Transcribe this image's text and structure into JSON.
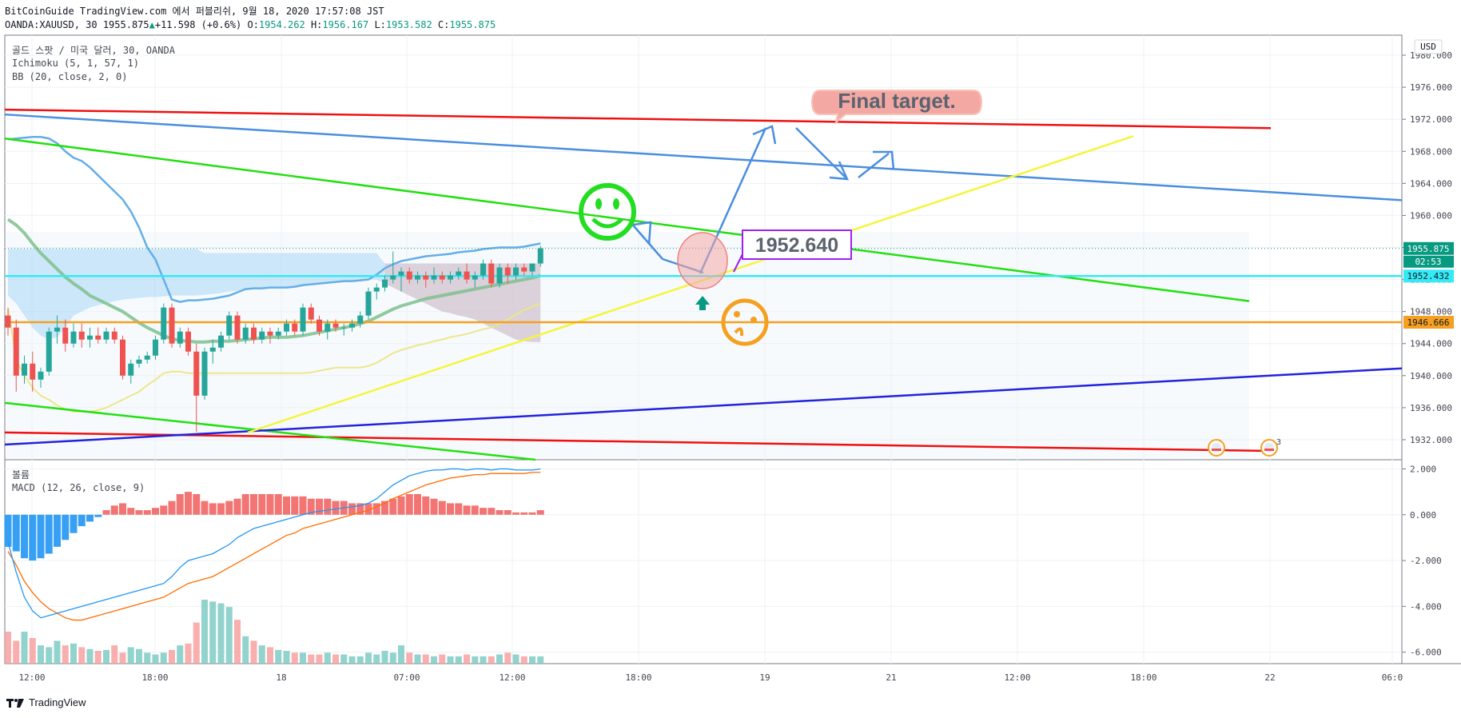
{
  "header": {
    "publish_line": "BitCoinGuide TradingView.com 에서 퍼블리쉬, 9월 18, 2020 17:57:08 JST",
    "symbol": "OANDA:XAUUSD, 30",
    "last": "1955.875",
    "change": "+11.598 (+0.6%)",
    "o_label": "O:",
    "o": "1954.262",
    "h_label": "H:",
    "h": "1956.167",
    "l_label": "L:",
    "l": "1953.582",
    "c_label": "C:",
    "c": "1955.875"
  },
  "legend": {
    "title": "골드 스팟 / 미국 달러, 30, OANDA",
    "ichimoku": "Ichimoku (5, 1, 57, 1)",
    "bb": "BB (20, close, 2, 0)",
    "volume": "볼륨",
    "macd": "MACD (12, 26, close, 9)"
  },
  "currency_label": "USD",
  "annotations": {
    "final_target": "Final target.",
    "price_box": "1952.640"
  },
  "price_tags": {
    "last": "1955.875",
    "countdown": "02:53",
    "cyan_line": "1952.432",
    "orange_line": "1946.666"
  },
  "event_count": "3",
  "brand": "TradingView",
  "colors": {
    "up": "#26a69a",
    "down": "#ef5350",
    "red_line": "#f01010",
    "blue_line": "#4a8ee0",
    "green_line": "#22e010",
    "yellow_line": "#f5f53c",
    "navy_line": "#2222dd",
    "cyan_line": "#33eaf5",
    "orange_line": "#f5a020"
  },
  "chart_data": {
    "type": "candlestick",
    "symbol": "OANDA:XAUUSD",
    "timeframe": "30",
    "price_axis": {
      "ticks": [
        "1980.000",
        "1976.000",
        "1972.000",
        "1968.000",
        "1964.000",
        "1960.000",
        "1956.000",
        "1952.000",
        "1948.000",
        "1944.000",
        "1940.000",
        "1936.000",
        "1932.000"
      ],
      "range": [
        1929.5,
        1982.5
      ]
    },
    "macd_axis": {
      "ticks": [
        "2.000",
        "0.000",
        "-2.000",
        "-4.000",
        "-6.000"
      ],
      "range": [
        -6.5,
        2.4
      ]
    },
    "time_ticks": [
      "12:00",
      "18:00",
      "18",
      "07:00",
      "12:00",
      "18:00",
      "19",
      "21",
      "12:00",
      "18:00",
      "22",
      "06:0"
    ],
    "candles": [
      [
        1947.5,
        1948.4,
        1945.0,
        1946.0
      ],
      [
        1946.0,
        1947.0,
        1938.0,
        1940.0
      ],
      [
        1940.0,
        1942.5,
        1939.0,
        1941.5
      ],
      [
        1941.5,
        1943.0,
        1938.0,
        1939.5
      ],
      [
        1939.5,
        1941.0,
        1938.5,
        1940.5
      ],
      [
        1940.5,
        1946.0,
        1940.0,
        1945.5
      ],
      [
        1945.5,
        1947.5,
        1944.0,
        1946.0
      ],
      [
        1946.0,
        1947.0,
        1943.0,
        1944.0
      ],
      [
        1944.0,
        1946.5,
        1943.5,
        1945.5
      ],
      [
        1945.5,
        1946.5,
        1943.5,
        1944.5
      ],
      [
        1944.5,
        1946.0,
        1943.5,
        1945.0
      ],
      [
        1945.0,
        1946.0,
        1944.0,
        1944.5
      ],
      [
        1944.5,
        1946.0,
        1944.0,
        1945.5
      ],
      [
        1945.5,
        1946.0,
        1944.0,
        1944.5
      ],
      [
        1944.5,
        1945.0,
        1939.5,
        1940.0
      ],
      [
        1940.0,
        1942.0,
        1939.0,
        1941.5
      ],
      [
        1941.5,
        1942.5,
        1941.0,
        1942.0
      ],
      [
        1942.0,
        1943.0,
        1941.5,
        1942.5
      ],
      [
        1942.5,
        1945.0,
        1942.0,
        1944.5
      ],
      [
        1944.5,
        1949.0,
        1944.0,
        1948.5
      ],
      [
        1948.5,
        1949.0,
        1943.5,
        1944.0
      ],
      [
        1944.0,
        1946.0,
        1943.5,
        1945.5
      ],
      [
        1945.5,
        1946.0,
        1942.5,
        1943.0
      ],
      [
        1943.0,
        1944.0,
        1933.0,
        1937.5
      ],
      [
        1937.5,
        1943.5,
        1937.0,
        1943.0
      ],
      [
        1943.0,
        1944.5,
        1941.5,
        1943.5
      ],
      [
        1943.5,
        1945.5,
        1943.0,
        1945.0
      ],
      [
        1945.0,
        1948.0,
        1944.5,
        1947.5
      ],
      [
        1947.5,
        1948.0,
        1944.0,
        1944.5
      ],
      [
        1944.5,
        1946.5,
        1944.0,
        1946.0
      ],
      [
        1946.0,
        1946.5,
        1944.0,
        1944.5
      ],
      [
        1944.5,
        1946.0,
        1944.0,
        1945.5
      ],
      [
        1945.5,
        1946.0,
        1944.0,
        1945.0
      ],
      [
        1945.0,
        1946.0,
        1944.5,
        1945.5
      ],
      [
        1945.5,
        1947.0,
        1945.0,
        1946.5
      ],
      [
        1946.5,
        1947.0,
        1945.0,
        1945.5
      ],
      [
        1945.5,
        1949.0,
        1945.0,
        1948.5
      ],
      [
        1948.5,
        1949.0,
        1946.5,
        1947.0
      ],
      [
        1947.0,
        1947.5,
        1945.0,
        1945.5
      ],
      [
        1945.5,
        1947.0,
        1944.5,
        1946.5
      ],
      [
        1946.5,
        1947.0,
        1945.5,
        1946.0
      ],
      [
        1946.0,
        1946.5,
        1945.0,
        1946.0
      ],
      [
        1946.0,
        1947.0,
        1945.5,
        1946.5
      ],
      [
        1946.5,
        1948.0,
        1946.0,
        1947.5
      ],
      [
        1947.5,
        1951.0,
        1947.0,
        1950.5
      ],
      [
        1950.5,
        1951.5,
        1949.5,
        1951.0
      ],
      [
        1951.0,
        1952.5,
        1950.5,
        1952.0
      ],
      [
        1952.0,
        1955.5,
        1951.5,
        1952.5
      ],
      [
        1952.5,
        1953.5,
        1950.5,
        1953.0
      ],
      [
        1953.0,
        1953.5,
        1951.5,
        1952.0
      ],
      [
        1952.0,
        1953.0,
        1951.5,
        1952.5
      ],
      [
        1952.5,
        1953.0,
        1951.0,
        1952.0
      ],
      [
        1952.0,
        1953.5,
        1951.5,
        1952.5
      ],
      [
        1952.5,
        1953.0,
        1951.5,
        1952.0
      ],
      [
        1952.0,
        1953.0,
        1951.5,
        1952.5
      ],
      [
        1952.5,
        1953.5,
        1952.0,
        1953.0
      ],
      [
        1953.0,
        1954.0,
        1951.5,
        1952.0
      ],
      [
        1952.0,
        1953.0,
        1951.0,
        1952.5
      ],
      [
        1952.5,
        1954.5,
        1952.0,
        1954.0
      ],
      [
        1954.0,
        1954.5,
        1951.0,
        1951.5
      ],
      [
        1951.5,
        1954.0,
        1951.0,
        1953.5
      ],
      [
        1953.5,
        1954.0,
        1951.5,
        1952.5
      ],
      [
        1952.5,
        1954.0,
        1952.0,
        1953.5
      ],
      [
        1953.5,
        1954.0,
        1952.5,
        1953.0
      ],
      [
        1953.0,
        1954.0,
        1952.5,
        1954.0
      ],
      [
        1954.0,
        1956.2,
        1953.6,
        1955.9
      ]
    ],
    "macd_histogram": [
      -1.4,
      -1.6,
      -1.9,
      -2.0,
      -1.9,
      -1.7,
      -1.4,
      -1.1,
      -0.8,
      -0.5,
      -0.3,
      -0.1,
      0.2,
      0.4,
      0.5,
      0.3,
      0.2,
      0.2,
      0.3,
      0.4,
      0.6,
      0.9,
      1.0,
      0.9,
      0.6,
      0.5,
      0.5,
      0.6,
      0.7,
      0.9,
      0.9,
      0.9,
      0.9,
      0.9,
      0.8,
      0.8,
      0.8,
      0.7,
      0.7,
      0.7,
      0.6,
      0.6,
      0.5,
      0.5,
      0.5,
      0.5,
      0.6,
      0.7,
      0.8,
      0.9,
      0.9,
      0.8,
      0.7,
      0.6,
      0.5,
      0.5,
      0.4,
      0.4,
      0.3,
      0.3,
      0.2,
      0.2,
      0.1,
      0.1,
      0.1,
      0.2
    ],
    "volume": [
      0.35,
      0.25,
      0.35,
      0.28,
      0.2,
      0.18,
      0.25,
      0.2,
      0.22,
      0.18,
      0.16,
      0.14,
      0.15,
      0.2,
      0.12,
      0.18,
      0.16,
      0.12,
      0.1,
      0.12,
      0.15,
      0.2,
      0.22,
      0.45,
      0.7,
      0.68,
      0.66,
      0.62,
      0.48,
      0.3,
      0.25,
      0.2,
      0.18,
      0.15,
      0.14,
      0.12,
      0.12,
      0.1,
      0.1,
      0.12,
      0.1,
      0.1,
      0.08,
      0.08,
      0.12,
      0.1,
      0.14,
      0.12,
      0.2,
      0.12,
      0.1,
      0.1,
      0.08,
      0.1,
      0.08,
      0.08,
      0.1,
      0.08,
      0.08,
      0.08,
      0.1,
      0.12,
      0.1,
      0.08,
      0.08,
      0.08
    ],
    "levels": {
      "cyan": 1952.432,
      "orange": 1946.666,
      "last": 1955.875,
      "target_box": 1952.64
    }
  }
}
